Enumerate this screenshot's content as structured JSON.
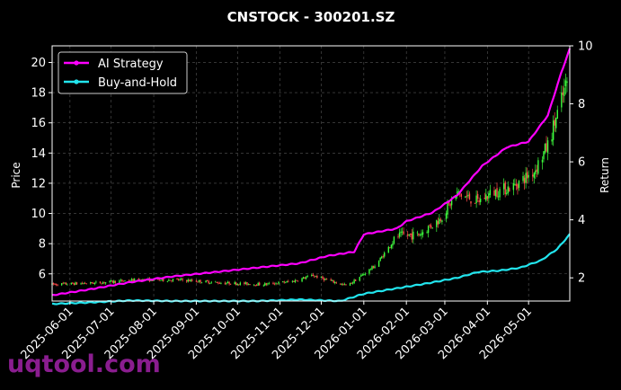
{
  "chart_data": {
    "type": "candlestick_with_lines",
    "title": "CNSTOCK - 300201.SZ",
    "ylabel_left": "Price",
    "ylabel_right": "Return",
    "ylim_left": [
      4.2,
      21.1
    ],
    "ylim_right": [
      1.2,
      10.0
    ],
    "xlim": [
      "2025-05-19",
      "2026-05-31"
    ],
    "yticks_left": [
      6,
      8,
      10,
      12,
      14,
      16,
      18,
      20
    ],
    "yticks_left_labels": [
      "6",
      "8",
      "10",
      "12",
      "14",
      "16",
      "18",
      "20"
    ],
    "yticks_right": [
      2,
      4,
      6,
      8,
      10
    ],
    "yticks_right_labels": [
      "2",
      "4",
      "6",
      "8",
      "10"
    ],
    "xticks": [
      "2025-06-01",
      "2025-07-01",
      "2025-08-01",
      "2025-09-01",
      "2025-10-01",
      "2025-11-01",
      "2025-12-01",
      "2026-01-01",
      "2026-02-01",
      "2026-03-01",
      "2026-04-01",
      "2026-05-01"
    ],
    "grid": true,
    "legend_position": "top-left",
    "legend": [
      {
        "name": "AI Strategy",
        "color": "#ff00ff"
      },
      {
        "name": "Buy-and-Hold",
        "color": "#22e5ee"
      }
    ],
    "candle_colors": {
      "up": "#3dff3d",
      "down": "#ff4a4a"
    },
    "price_anchors": [
      [
        "2025-05-19",
        5.3
      ],
      [
        "2025-06-20",
        5.4
      ],
      [
        "2025-07-20",
        5.6
      ],
      [
        "2025-08-20",
        5.6
      ],
      [
        "2025-09-20",
        5.4
      ],
      [
        "2025-10-20",
        5.3
      ],
      [
        "2025-11-10",
        5.5
      ],
      [
        "2025-11-25",
        5.9
      ],
      [
        "2025-12-05",
        5.6
      ],
      [
        "2025-12-20",
        5.2
      ],
      [
        "2026-01-10",
        6.6
      ],
      [
        "2026-01-25",
        8.5
      ],
      [
        "2026-02-10",
        8.6
      ],
      [
        "2026-02-25",
        9.6
      ],
      [
        "2026-03-10",
        11.3
      ],
      [
        "2026-03-25",
        10.8
      ],
      [
        "2026-04-05",
        11.4
      ],
      [
        "2026-04-20",
        11.8
      ],
      [
        "2026-05-05",
        12.8
      ],
      [
        "2026-05-15",
        14.5
      ],
      [
        "2026-05-25",
        17.5
      ],
      [
        "2026-05-31",
        19.3
      ]
    ],
    "series": [
      {
        "name": "AI Strategy",
        "axis": "right",
        "points": [
          [
            "2025-05-19",
            1.4
          ],
          [
            "2025-06-15",
            1.6
          ],
          [
            "2025-07-15",
            1.85
          ],
          [
            "2025-08-15",
            2.05
          ],
          [
            "2025-09-15",
            2.2
          ],
          [
            "2025-10-15",
            2.35
          ],
          [
            "2025-11-15",
            2.5
          ],
          [
            "2025-12-05",
            2.75
          ],
          [
            "2025-12-25",
            2.9
          ],
          [
            "2026-01-01",
            3.5
          ],
          [
            "2026-01-25",
            3.7
          ],
          [
            "2026-02-01",
            3.95
          ],
          [
            "2026-02-20",
            4.25
          ],
          [
            "2026-03-10",
            4.85
          ],
          [
            "2026-03-28",
            5.85
          ],
          [
            "2026-04-15",
            6.5
          ],
          [
            "2026-05-01",
            6.7
          ],
          [
            "2026-05-15",
            7.6
          ],
          [
            "2026-05-25",
            9.1
          ],
          [
            "2026-05-31",
            9.9
          ]
        ]
      },
      {
        "name": "Buy-and-Hold",
        "axis": "right",
        "points": [
          [
            "2025-05-19",
            1.1
          ],
          [
            "2025-06-15",
            1.15
          ],
          [
            "2025-07-15",
            1.22
          ],
          [
            "2025-08-15",
            1.2
          ],
          [
            "2025-09-15",
            1.2
          ],
          [
            "2025-10-15",
            1.2
          ],
          [
            "2025-11-15",
            1.25
          ],
          [
            "2025-12-15",
            1.2
          ],
          [
            "2026-01-01",
            1.45
          ],
          [
            "2026-01-20",
            1.6
          ],
          [
            "2026-02-15",
            1.8
          ],
          [
            "2026-03-10",
            2.0
          ],
          [
            "2026-03-25",
            2.2
          ],
          [
            "2026-04-10",
            2.25
          ],
          [
            "2026-04-25",
            2.35
          ],
          [
            "2026-05-10",
            2.6
          ],
          [
            "2026-05-22",
            3.0
          ],
          [
            "2026-05-31",
            3.5
          ]
        ]
      }
    ]
  },
  "watermark": "uqtool.com"
}
